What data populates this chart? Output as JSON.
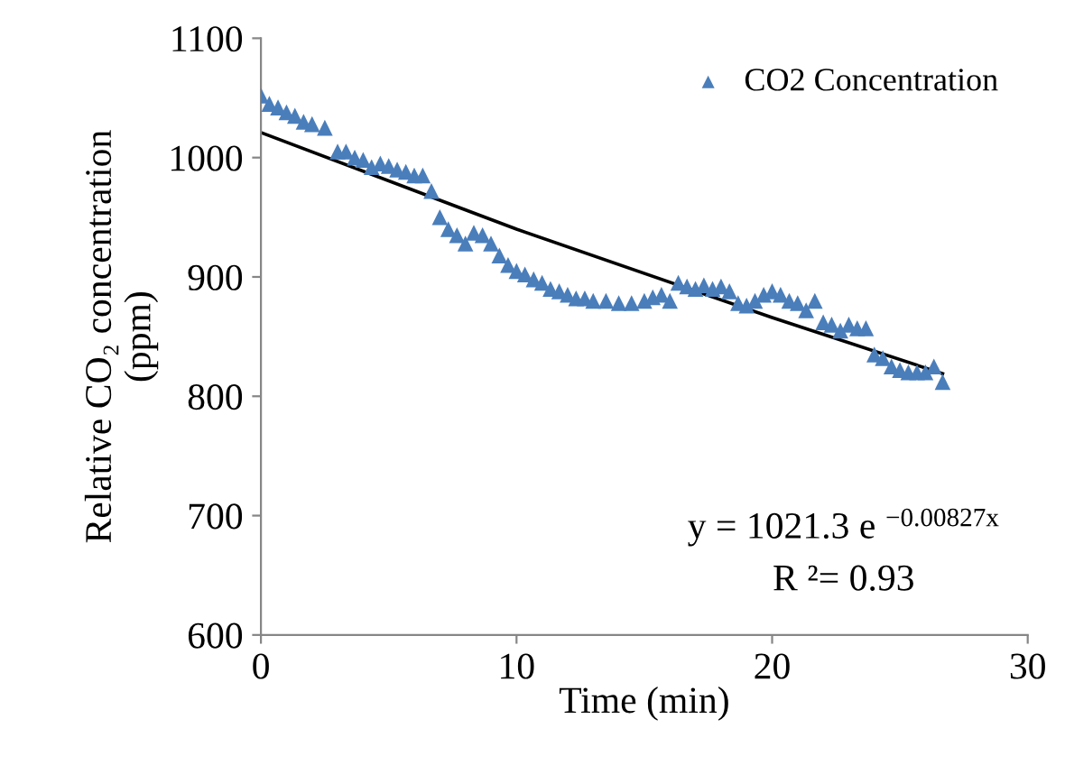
{
  "chart_data": {
    "type": "scatter",
    "xlabel": "Time (min)",
    "ylabel": "Relative CO₂ concentration\n(ppm)",
    "xlim": [
      0,
      30
    ],
    "xticks": [
      0,
      10,
      20,
      30
    ],
    "ylim": [
      600,
      1100
    ],
    "yticks": [
      600,
      700,
      800,
      900,
      1000,
      1100
    ],
    "grid": false,
    "legend": "top right",
    "series": [
      {
        "name": "CO2 Concentration",
        "color": "#4a7ebb",
        "marker": "triangle",
        "x": [
          0,
          0.33,
          0.67,
          1,
          1.33,
          1.67,
          2,
          2.5,
          3,
          3.33,
          3.67,
          4,
          4.33,
          4.67,
          5,
          5.33,
          5.67,
          6,
          6.33,
          6.67,
          7,
          7.33,
          7.67,
          8,
          8.33,
          8.67,
          9,
          9.33,
          9.67,
          10,
          10.33,
          10.67,
          11,
          11.33,
          11.67,
          12,
          12.33,
          12.67,
          13,
          13.5,
          14,
          14.5,
          15,
          15.33,
          15.67,
          16,
          16.33,
          16.67,
          17,
          17.33,
          17.67,
          18,
          18.33,
          18.67,
          19,
          19.33,
          19.67,
          20,
          20.33,
          20.67,
          21,
          21.33,
          21.67,
          22,
          22.33,
          22.67,
          23,
          23.33,
          23.67,
          24,
          24.33,
          24.67,
          25,
          25.33,
          25.67,
          26,
          26.33,
          26.67
        ],
        "values": [
          1052,
          1045,
          1042,
          1038,
          1035,
          1030,
          1028,
          1025,
          1005,
          1005,
          1000,
          998,
          992,
          995,
          993,
          990,
          988,
          985,
          985,
          972,
          950,
          940,
          935,
          928,
          937,
          935,
          928,
          918,
          910,
          905,
          902,
          898,
          895,
          890,
          888,
          885,
          882,
          882,
          880,
          880,
          878,
          878,
          880,
          883,
          885,
          880,
          895,
          892,
          890,
          893,
          890,
          892,
          888,
          878,
          876,
          880,
          885,
          888,
          885,
          880,
          878,
          872,
          880,
          862,
          860,
          855,
          860,
          857,
          857,
          835,
          832,
          825,
          822,
          820,
          820,
          820,
          825,
          812
        ]
      },
      {
        "type": "line",
        "color": "#000000",
        "marker": "none",
        "x": [
          0,
          10,
          20,
          26.67
        ],
        "values": [
          1021,
          940,
          866,
          819
        ]
      }
    ],
    "annotations": [
      "y = 1021.3 e $^{−0.00827x}$",
      "R ²= 0.93"
    ]
  }
}
